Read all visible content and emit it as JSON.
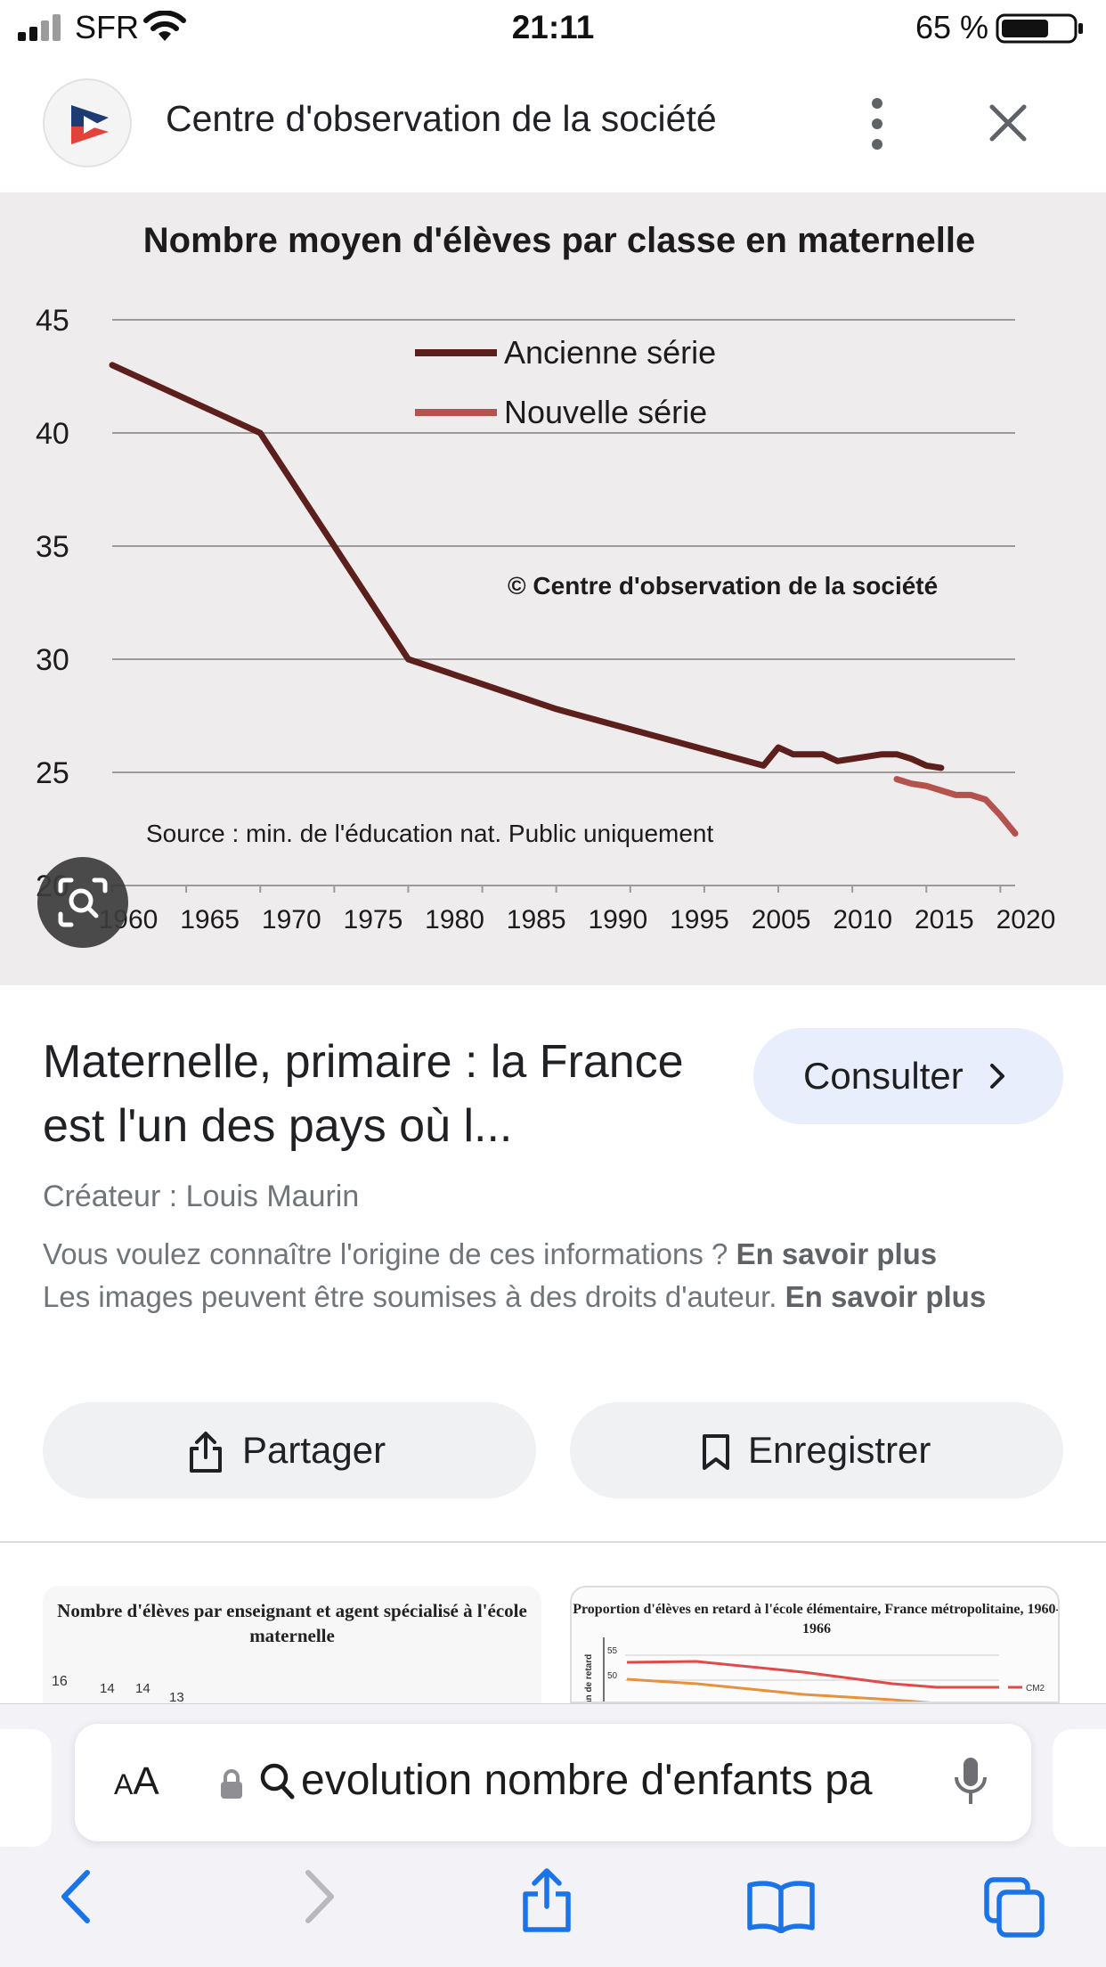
{
  "status_bar": {
    "carrier": "SFR",
    "time": "21:11",
    "battery": "65 %"
  },
  "header": {
    "site_name": "Centre d'observation de la société"
  },
  "preview": {
    "chart_title": "Nombre moyen d'élèves par classe en maternelle",
    "copyright_note": "© Centre d'observation de la société",
    "source_note": "Source : min. de l'éducation nat. Public uniquement"
  },
  "chart_data": {
    "type": "line",
    "title": "Nombre moyen d'élèves par classe en maternelle",
    "xlabel": "",
    "ylabel": "",
    "ylim": [
      20,
      45
    ],
    "xlim": [
      1960,
      2021
    ],
    "y_ticks": [
      "45",
      "40",
      "35",
      "30",
      "25",
      "20"
    ],
    "x_ticks": [
      "1960",
      "1965",
      "1970",
      "1975",
      "1980",
      "1985",
      "1990",
      "1995",
      "2005",
      "2010",
      "2015",
      "2020"
    ],
    "grid": true,
    "legend_position": "top",
    "series": [
      {
        "name": "Ancienne série",
        "color": "#5c1f1c",
        "x": [
          1960,
          1970,
          1980,
          1990,
          2004,
          2005,
          2006,
          2008,
          2009,
          2010,
          2012,
          2013,
          2014,
          2015,
          2016
        ],
        "y": [
          43,
          40,
          30,
          27.8,
          25.3,
          26.1,
          25.8,
          25.8,
          25.5,
          25.6,
          25.8,
          25.8,
          25.6,
          25.3,
          25.2
        ]
      },
      {
        "name": "Nouvelle série",
        "color": "#b5524d",
        "x": [
          2013,
          2014,
          2015,
          2016,
          2017,
          2018,
          2019,
          2020,
          2021
        ],
        "y": [
          24.7,
          24.5,
          24.4,
          24.2,
          24.0,
          24.0,
          23.8,
          23.1,
          22.3
        ]
      }
    ]
  },
  "result": {
    "title": "Maternelle, primaire : la France est l'un des pays où l...",
    "consult_label": "Consulter",
    "creator": "Créateur : Louis Maurin",
    "origin_text": "Vous voulez connaître l'origine de ces informations ?",
    "origin_link": "En savoir plus",
    "copyright_text": "Les images peuvent être soumises à des droits d'auteur.",
    "copyright_link": "En savoir plus",
    "share_label": "Partager",
    "save_label": "Enregistrer"
  },
  "related": {
    "thumb1_title": "Nombre d'élèves par enseignant et agent spécialisé à l'école maternelle",
    "thumb1_values": [
      "16",
      "14",
      "14",
      "13"
    ],
    "thumb2_title": "Proportion d'élèves en retard à l'école élémentaire, France métropolitaine, 1960-1966",
    "thumb2_axis_label": "an de retard",
    "thumb2_ticks": [
      "55",
      "50"
    ],
    "thumb2_legend": "CM2"
  },
  "browser": {
    "aa_label_small": "A",
    "aa_label_large": "A",
    "address_text": "evolution nombre d'enfants pa"
  },
  "icons": {
    "signal": "signal-icon",
    "wifi": "wifi-icon",
    "battery": "battery-icon",
    "more": "more-vert-icon",
    "close": "close-icon",
    "lens": "lens-icon",
    "share": "share-icon",
    "bookmark": "bookmark-icon",
    "lock": "lock-icon",
    "search": "search-icon",
    "mic": "mic-icon",
    "back": "back-arrow-icon",
    "forward": "forward-arrow-icon",
    "tabs": "tabs-icon"
  }
}
